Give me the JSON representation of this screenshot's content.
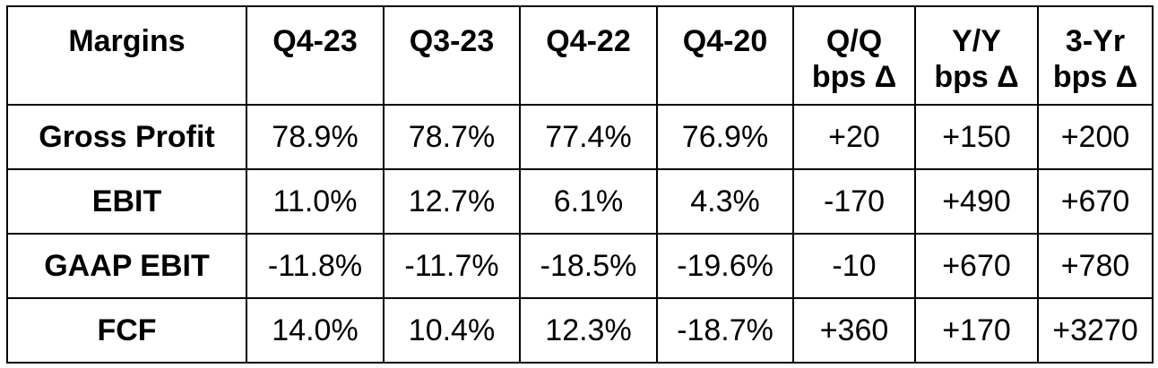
{
  "table": {
    "headers": [
      "Margins",
      "Q4-23",
      "Q3-23",
      "Q4-22",
      "Q4-20",
      [
        "Q/Q",
        "bps Δ"
      ],
      [
        "Y/Y",
        "bps Δ"
      ],
      [
        "3-Yr",
        "bps Δ"
      ]
    ],
    "rows": [
      {
        "label": "Gross Profit",
        "values": [
          "78.9%",
          "78.7%",
          "77.4%",
          "76.9%",
          "+20",
          "+150",
          "+200"
        ]
      },
      {
        "label": "EBIT",
        "values": [
          "11.0%",
          "12.7%",
          "6.1%",
          "4.3%",
          "-170",
          "+490",
          "+670"
        ]
      },
      {
        "label": "GAAP EBIT",
        "values": [
          "-11.8%",
          "-11.7%",
          "-18.5%",
          "-19.6%",
          "-10",
          "+670",
          "+780"
        ]
      },
      {
        "label": "FCF",
        "values": [
          "14.0%",
          "10.4%",
          "12.3%",
          "-18.7%",
          "+360",
          "+170",
          "+3270"
        ]
      }
    ]
  }
}
